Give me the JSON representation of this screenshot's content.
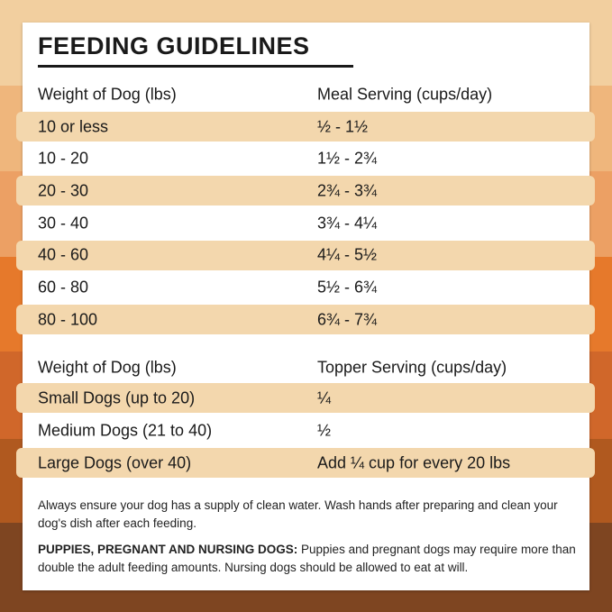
{
  "colors": {
    "bands": [
      "#f2cf9f",
      "#efb67c",
      "#eca064",
      "#e6792b",
      "#d0672a",
      "#b0591f",
      "#7e4521"
    ],
    "row_highlight": "#f3d7ad",
    "card": "#ffffff"
  },
  "title": "FEEDING GUIDELINES",
  "meal_table": {
    "headers": [
      "Weight of Dog (lbs)",
      "Meal Serving (cups/day)"
    ],
    "rows": [
      [
        "10 or less",
        "½ - 1½"
      ],
      [
        "10 - 20",
        "1½ - 2¾"
      ],
      [
        "20 - 30",
        "2¾ - 3¾"
      ],
      [
        "30 - 40",
        "3¾ - 4¼"
      ],
      [
        "40 - 60",
        "4¼ - 5½"
      ],
      [
        "60 - 80",
        "5½ - 6¾"
      ],
      [
        "80 - 100",
        "6¾ - 7¾"
      ]
    ]
  },
  "topper_table": {
    "headers": [
      "Weight of Dog (lbs)",
      "Topper Serving (cups/day)"
    ],
    "rows": [
      [
        "Small Dogs (up to 20)",
        "¼"
      ],
      [
        "Medium Dogs (21 to 40)",
        "½"
      ],
      [
        "Large Dogs (over 40)",
        "Add ¼ cup for every 20 lbs"
      ]
    ]
  },
  "notes": {
    "water": "Always ensure your dog has a supply of clean water. Wash hands after preparing and clean your dog's dish after each feeding.",
    "puppies_label": "PUPPIES, PREGNANT AND NURSING DOGS:",
    "puppies_text": " Puppies and pregnant dogs may require more than double the adult feeding amounts. Nursing dogs should be allowed to eat at will."
  }
}
